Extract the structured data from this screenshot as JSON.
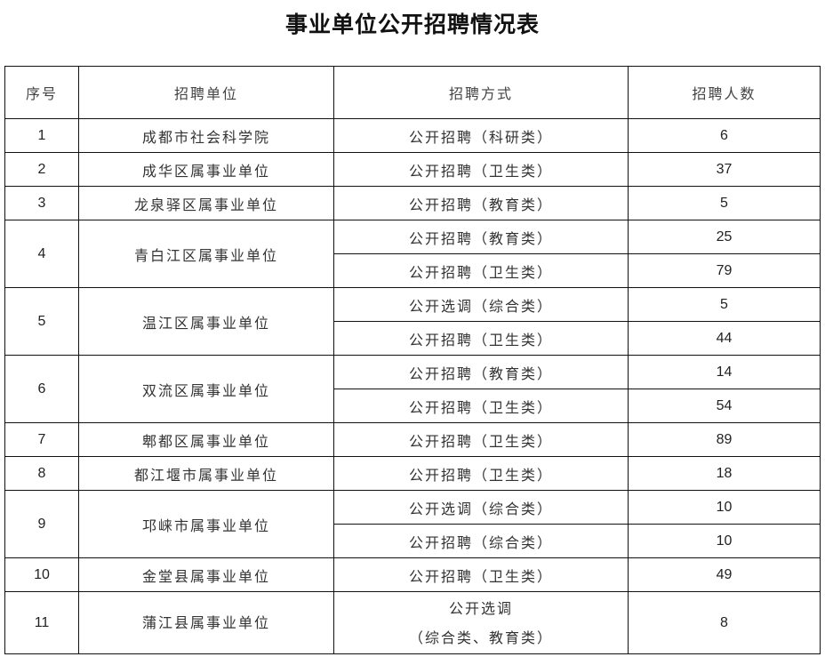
{
  "title": "事业单位公开招聘情况表",
  "headers": [
    "序号",
    "招聘单位",
    "招聘方式",
    "招聘人数"
  ],
  "rows": [
    {
      "no": "1",
      "unit": "成都市社会科学院",
      "items": [
        {
          "method": "公开招聘（科研类）",
          "count": "6"
        }
      ]
    },
    {
      "no": "2",
      "unit": "成华区属事业单位",
      "items": [
        {
          "method": "公开招聘（卫生类）",
          "count": "37"
        }
      ]
    },
    {
      "no": "3",
      "unit": "龙泉驿区属事业单位",
      "items": [
        {
          "method": "公开招聘（教育类）",
          "count": "5"
        }
      ]
    },
    {
      "no": "4",
      "unit": "青白江区属事业单位",
      "items": [
        {
          "method": "公开招聘（教育类）",
          "count": "25"
        },
        {
          "method": "公开招聘（卫生类）",
          "count": "79"
        }
      ]
    },
    {
      "no": "5",
      "unit": "温江区属事业单位",
      "items": [
        {
          "method": "公开选调（综合类）",
          "count": "5"
        },
        {
          "method": "公开招聘（卫生类）",
          "count": "44"
        }
      ]
    },
    {
      "no": "6",
      "unit": "双流区属事业单位",
      "items": [
        {
          "method": "公开招聘（教育类）",
          "count": "14"
        },
        {
          "method": "公开招聘（卫生类）",
          "count": "54"
        }
      ]
    },
    {
      "no": "7",
      "unit": "郫都区属事业单位",
      "items": [
        {
          "method": "公开招聘（卫生类）",
          "count": "89"
        }
      ]
    },
    {
      "no": "8",
      "unit": "都江堰市属事业单位",
      "items": [
        {
          "method": "公开招聘（卫生类）",
          "count": "18"
        }
      ]
    },
    {
      "no": "9",
      "unit": "邛崃市属事业单位",
      "items": [
        {
          "method": "公开选调（综合类）",
          "count": "10"
        },
        {
          "method": "公开招聘（综合类）",
          "count": "10"
        }
      ]
    },
    {
      "no": "10",
      "unit": "金堂县属事业单位",
      "items": [
        {
          "method": "公开招聘（卫生类）",
          "count": "49"
        }
      ]
    },
    {
      "no": "11",
      "unit": "蒲江县属事业单位",
      "items": [
        {
          "method": "公开选调",
          "method_line2": "（综合类、教育类）",
          "count": "8"
        }
      ]
    }
  ]
}
